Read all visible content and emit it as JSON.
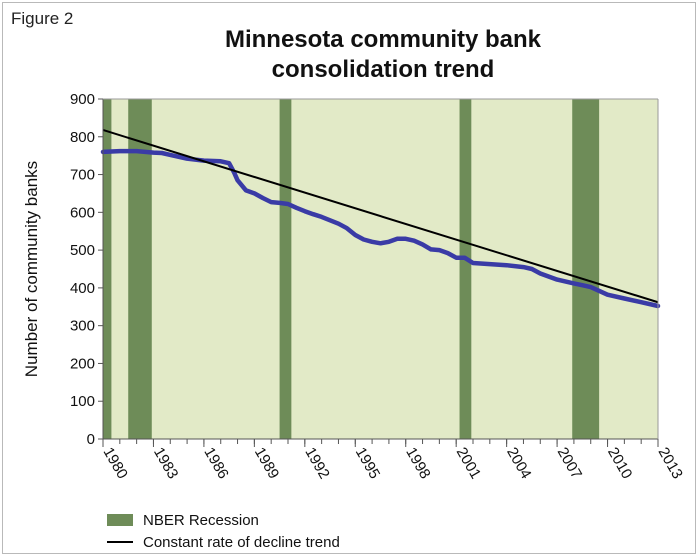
{
  "figure_label": "Figure 2",
  "colors": {
    "plot_background": "#e2eac7",
    "recession_band": "#6e8c58",
    "actual_line": "#3a3ba6",
    "trend_line": "#000000"
  },
  "legend": {
    "recession_label": "NBER Recession",
    "trend_label": "Constant rate of decline trend"
  },
  "chart_data": {
    "type": "line",
    "title": "Minnesota community bank",
    "subtitle": "consolidation trend",
    "xlabel": "",
    "ylabel": "Number of community banks",
    "xlim": [
      1980,
      2013
    ],
    "ylim": [
      0,
      900
    ],
    "x_ticks": [
      1980,
      1983,
      1986,
      1989,
      1992,
      1995,
      1998,
      2001,
      2004,
      2007,
      2010,
      2013
    ],
    "y_ticks": [
      0,
      100,
      200,
      300,
      400,
      500,
      600,
      700,
      800,
      900
    ],
    "grid": false,
    "legend_position": "bottom-left",
    "recession_periods": [
      [
        1980.0,
        1980.5
      ],
      [
        1981.5,
        1982.9
      ],
      [
        1990.5,
        1991.2
      ],
      [
        2001.2,
        2001.9
      ],
      [
        2007.9,
        2009.5
      ]
    ],
    "series": [
      {
        "x": [
          1980.0,
          1981.0,
          1982.0,
          1983.0,
          1983.5,
          1984.0,
          1985.0,
          1986.0,
          1987.0,
          1987.5,
          1987.8,
          1988.0,
          1988.5,
          1989.0,
          1989.5,
          1990.0,
          1990.5,
          1991.0,
          1991.5,
          1992.0,
          1992.5,
          1993.0,
          1994.0,
          1994.5,
          1995.0,
          1995.5,
          1996.0,
          1996.5,
          1997.0,
          1997.5,
          1998.0,
          1998.5,
          1999.0,
          1999.5,
          2000.0,
          2000.5,
          2001.0,
          2001.5,
          2002.0,
          2003.0,
          2004.0,
          2005.0,
          2005.5,
          2006.0,
          2007.0,
          2008.0,
          2008.5,
          2009.0,
          2010.0,
          2011.0,
          2012.0,
          2013.0
        ],
        "values": [
          760,
          762,
          762,
          758,
          757,
          752,
          742,
          737,
          735,
          730,
          705,
          685,
          658,
          650,
          638,
          627,
          625,
          622,
          612,
          603,
          595,
          588,
          570,
          558,
          540,
          528,
          522,
          518,
          522,
          530,
          530,
          525,
          515,
          502,
          500,
          492,
          480,
          480,
          466,
          463,
          460,
          455,
          450,
          438,
          422,
          412,
          407,
          402,
          382,
          372,
          362,
          352
        ]
      },
      {
        "name": "Constant rate of decline trend",
        "x": [
          1980,
          2013
        ],
        "values": [
          818,
          362
        ]
      }
    ]
  }
}
